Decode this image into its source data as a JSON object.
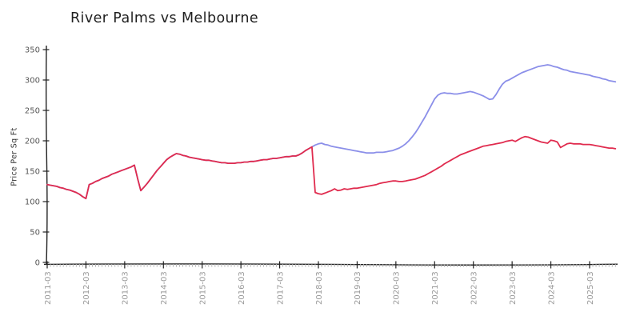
{
  "title": "River Palms vs Melbourne",
  "y_axis": {
    "label": "Price Per Sq Ft",
    "ticks": [
      0,
      50,
      100,
      150,
      200,
      250,
      300,
      350
    ]
  },
  "x_axis": {
    "tick_labels": [
      "2011-03",
      "2012-03",
      "2013-03",
      "2014-03",
      "2015-03",
      "2016-03",
      "2017-03",
      "2018-03",
      "2019-03",
      "2020-03",
      "2021-03",
      "2022-03",
      "2023-03",
      "2024-03",
      "2025-03"
    ]
  },
  "colors": {
    "river_palms": "#e02b4e",
    "melbourne": "#8b8fe9",
    "axis": "#222222",
    "x_tick_labels": "#999999",
    "y_tick_labels": "#555555"
  },
  "chart_data": {
    "type": "line",
    "title": "River Palms vs Melbourne",
    "xlabel": "",
    "ylabel": "Price Per Sq Ft",
    "ylim": [
      0,
      350
    ],
    "x_start": "2011-03",
    "x_step": "1 month",
    "x_end": "2025-11",
    "x_tick_labels": [
      "2011-03",
      "2012-03",
      "2013-03",
      "2014-03",
      "2015-03",
      "2016-03",
      "2017-03",
      "2018-03",
      "2019-03",
      "2020-03",
      "2021-03",
      "2022-03",
      "2023-03",
      "2024-03",
      "2025-03"
    ],
    "legend": "none",
    "grid": false,
    "series": [
      {
        "name": "River Palms",
        "color": "#e02b4e",
        "values": [
          128,
          127,
          126,
          125,
          123,
          122,
          120,
          119,
          117,
          115,
          112,
          108,
          105,
          128,
          130,
          133,
          135,
          138,
          140,
          142,
          145,
          147,
          149,
          151,
          153,
          155,
          157,
          160,
          138,
          118,
          124,
          130,
          137,
          144,
          151,
          157,
          163,
          169,
          173,
          176,
          179,
          178,
          176,
          175,
          173,
          172,
          171,
          170,
          169,
          168,
          168,
          167,
          166,
          165,
          164,
          164,
          163,
          163,
          163,
          164,
          164,
          165,
          165,
          166,
          166,
          167,
          168,
          169,
          169,
          170,
          171,
          171,
          172,
          173,
          174,
          174,
          175,
          175,
          177,
          180,
          184,
          187,
          190,
          115,
          113,
          112,
          114,
          116,
          118,
          121,
          118,
          119,
          121,
          120,
          121,
          122,
          122,
          123,
          124,
          125,
          126,
          127,
          128,
          130,
          131,
          132,
          133,
          134,
          134,
          133,
          133,
          134,
          135,
          136,
          137,
          139,
          141,
          143,
          146,
          149,
          152,
          155,
          158,
          162,
          165,
          168,
          171,
          174,
          177,
          179,
          181,
          183,
          185,
          187,
          189,
          191,
          192,
          193,
          194,
          195,
          196,
          197,
          199,
          200,
          201,
          199,
          202,
          205,
          207,
          206,
          204,
          202,
          200,
          198,
          197,
          196,
          201,
          200,
          198,
          189,
          192,
          195,
          196,
          195,
          195,
          195,
          194,
          194,
          194,
          193,
          192,
          191,
          190,
          189,
          188,
          188,
          187
        ]
      },
      {
        "name": "Melbourne",
        "color": "#8b8fe9",
        "values": [
          128,
          127,
          126,
          125,
          123,
          122,
          120,
          119,
          117,
          115,
          112,
          108,
          105,
          128,
          130,
          133,
          135,
          138,
          140,
          142,
          145,
          147,
          149,
          151,
          153,
          155,
          157,
          160,
          138,
          118,
          124,
          130,
          137,
          144,
          151,
          157,
          163,
          169,
          173,
          176,
          179,
          178,
          176,
          175,
          173,
          172,
          171,
          170,
          169,
          168,
          168,
          167,
          166,
          165,
          164,
          164,
          163,
          163,
          163,
          164,
          164,
          165,
          165,
          166,
          166,
          167,
          168,
          169,
          169,
          170,
          171,
          171,
          172,
          173,
          174,
          174,
          175,
          175,
          177,
          180,
          184,
          187,
          190,
          193,
          195,
          196,
          194,
          193,
          191,
          190,
          189,
          188,
          187,
          186,
          185,
          184,
          183,
          182,
          181,
          180,
          180,
          180,
          181,
          181,
          181,
          182,
          183,
          184,
          186,
          188,
          191,
          195,
          200,
          206,
          213,
          221,
          230,
          239,
          249,
          259,
          269,
          275,
          278,
          279,
          278,
          278,
          277,
          277,
          278,
          279,
          280,
          281,
          280,
          278,
          276,
          274,
          271,
          268,
          269,
          276,
          285,
          293,
          298,
          300,
          303,
          306,
          309,
          312,
          314,
          316,
          318,
          320,
          322,
          323,
          324,
          325,
          324,
          322,
          321,
          319,
          317,
          316,
          314,
          313,
          312,
          311,
          310,
          309,
          308,
          306,
          305,
          304,
          302,
          301,
          299,
          298,
          297
        ]
      }
    ]
  }
}
